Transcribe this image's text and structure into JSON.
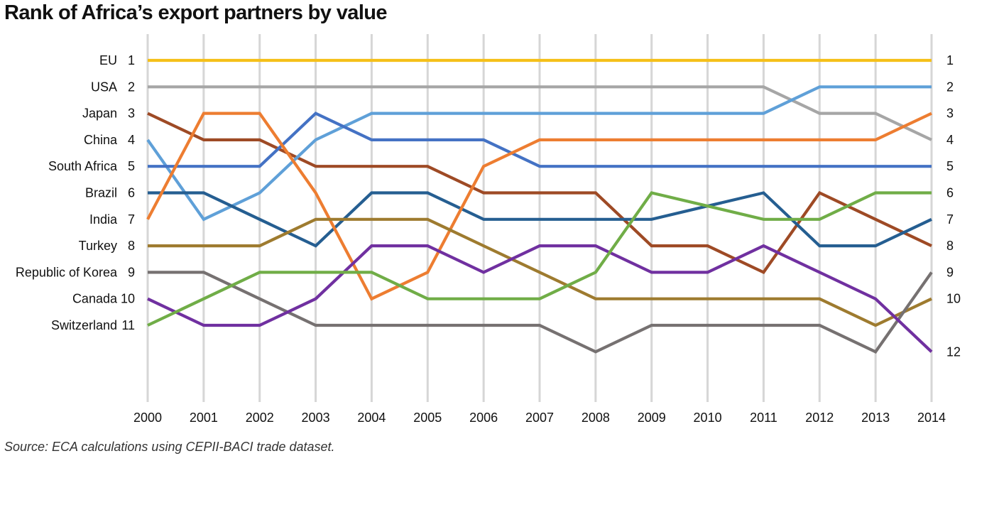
{
  "title": "Rank of Africa’s export partners by value",
  "source": "Source: ECA calculations using CEPII-BACI trade dataset.",
  "chart_data": {
    "type": "line",
    "title": "Rank of Africa’s export partners by value",
    "x": [
      2000,
      2001,
      2002,
      2003,
      2004,
      2005,
      2006,
      2007,
      2008,
      2009,
      2010,
      2011,
      2012,
      2013,
      2014
    ],
    "ylim": [
      1,
      12
    ],
    "y_inverted": true,
    "grid": "vertical",
    "left_labels": [
      {
        "rank": 1,
        "label": "EU"
      },
      {
        "rank": 2,
        "label": "USA"
      },
      {
        "rank": 3,
        "label": "Japan"
      },
      {
        "rank": 4,
        "label": "China"
      },
      {
        "rank": 5,
        "label": "South Africa"
      },
      {
        "rank": 6,
        "label": "Brazil"
      },
      {
        "rank": 7,
        "label": "India"
      },
      {
        "rank": 8,
        "label": "Turkey"
      },
      {
        "rank": 9,
        "label": "Republic of Korea"
      },
      {
        "rank": 10,
        "label": "Canada"
      },
      {
        "rank": 11,
        "label": "Switzerland"
      }
    ],
    "right_ticks": [
      1,
      2,
      3,
      4,
      5,
      6,
      7,
      8,
      9,
      10,
      12
    ],
    "series": [
      {
        "name": "EU",
        "color": "#F5C019",
        "values": [
          1,
          1,
          1,
          1,
          1,
          1,
          1,
          1,
          1,
          1,
          1,
          1,
          1,
          1,
          1
        ]
      },
      {
        "name": "USA",
        "color": "#A6A6A6",
        "values": [
          2,
          2,
          2,
          2,
          2,
          2,
          2,
          2,
          2,
          2,
          2,
          2,
          3,
          3,
          4
        ]
      },
      {
        "name": "Japan",
        "color": "#9E4A25",
        "values": [
          3,
          4,
          4,
          5,
          5,
          5,
          6,
          6,
          6,
          8,
          8,
          9,
          6,
          7,
          8
        ]
      },
      {
        "name": "China",
        "color": "#5FA0D8",
        "values": [
          4,
          7,
          6,
          4,
          3,
          3,
          3,
          3,
          3,
          3,
          3,
          3,
          2,
          2,
          2
        ]
      },
      {
        "name": "South Africa",
        "color": "#4472C4",
        "values": [
          5,
          5,
          5,
          3,
          4,
          4,
          4,
          5,
          5,
          5,
          5,
          5,
          5,
          5,
          5
        ]
      },
      {
        "name": "Brazil",
        "color": "#255E91",
        "values": [
          6,
          6,
          7,
          8,
          6,
          6,
          7,
          7,
          7,
          7,
          6.5,
          6,
          8,
          8,
          7
        ]
      },
      {
        "name": "India",
        "color": "#ED7D31",
        "values": [
          7,
          3,
          3,
          6,
          10,
          9,
          5,
          4,
          4,
          4,
          4,
          4,
          4,
          4,
          3
        ]
      },
      {
        "name": "Turkey",
        "color": "#9E7B2F",
        "values": [
          8,
          8,
          8,
          7,
          7,
          7,
          8,
          9,
          10,
          10,
          10,
          10,
          10,
          11,
          10
        ]
      },
      {
        "name": "Republic of Korea",
        "color": "#767171",
        "values": [
          9,
          9,
          10,
          11,
          11,
          11,
          11,
          11,
          12,
          11,
          11,
          11,
          11,
          12,
          9
        ]
      },
      {
        "name": "Canada",
        "color": "#7030A0",
        "values": [
          10,
          11,
          11,
          10,
          8,
          8,
          9,
          8,
          8,
          9,
          9,
          8,
          9,
          10,
          12
        ]
      },
      {
        "name": "Switzerland",
        "color": "#70AD47",
        "values": [
          11,
          10,
          9,
          9,
          9,
          10,
          10,
          10,
          9,
          6,
          6.5,
          7,
          7,
          6,
          6
        ]
      }
    ]
  }
}
